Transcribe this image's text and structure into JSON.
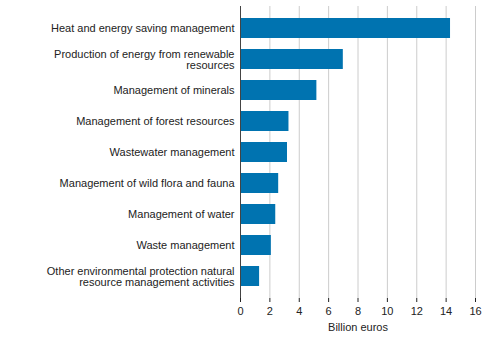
{
  "chart_data": {
    "type": "bar",
    "orientation": "horizontal",
    "categories": [
      "Heat and energy saving management",
      "Production of energy from renewable resources",
      "Management of minerals",
      "Management of forest resources",
      "Wastewater management",
      "Management of wild flora and fauna",
      "Management of water",
      "Waste management",
      "Other environmental protection natural resource management activities"
    ],
    "values": [
      14.3,
      7.0,
      5.2,
      3.3,
      3.2,
      2.6,
      2.4,
      2.1,
      1.3
    ],
    "color": "#0073b0",
    "x_label": "Billion euros",
    "xlim": [
      0,
      16
    ],
    "xticks": [
      0,
      2,
      4,
      6,
      8,
      10,
      12,
      14,
      16
    ],
    "grid": true
  }
}
